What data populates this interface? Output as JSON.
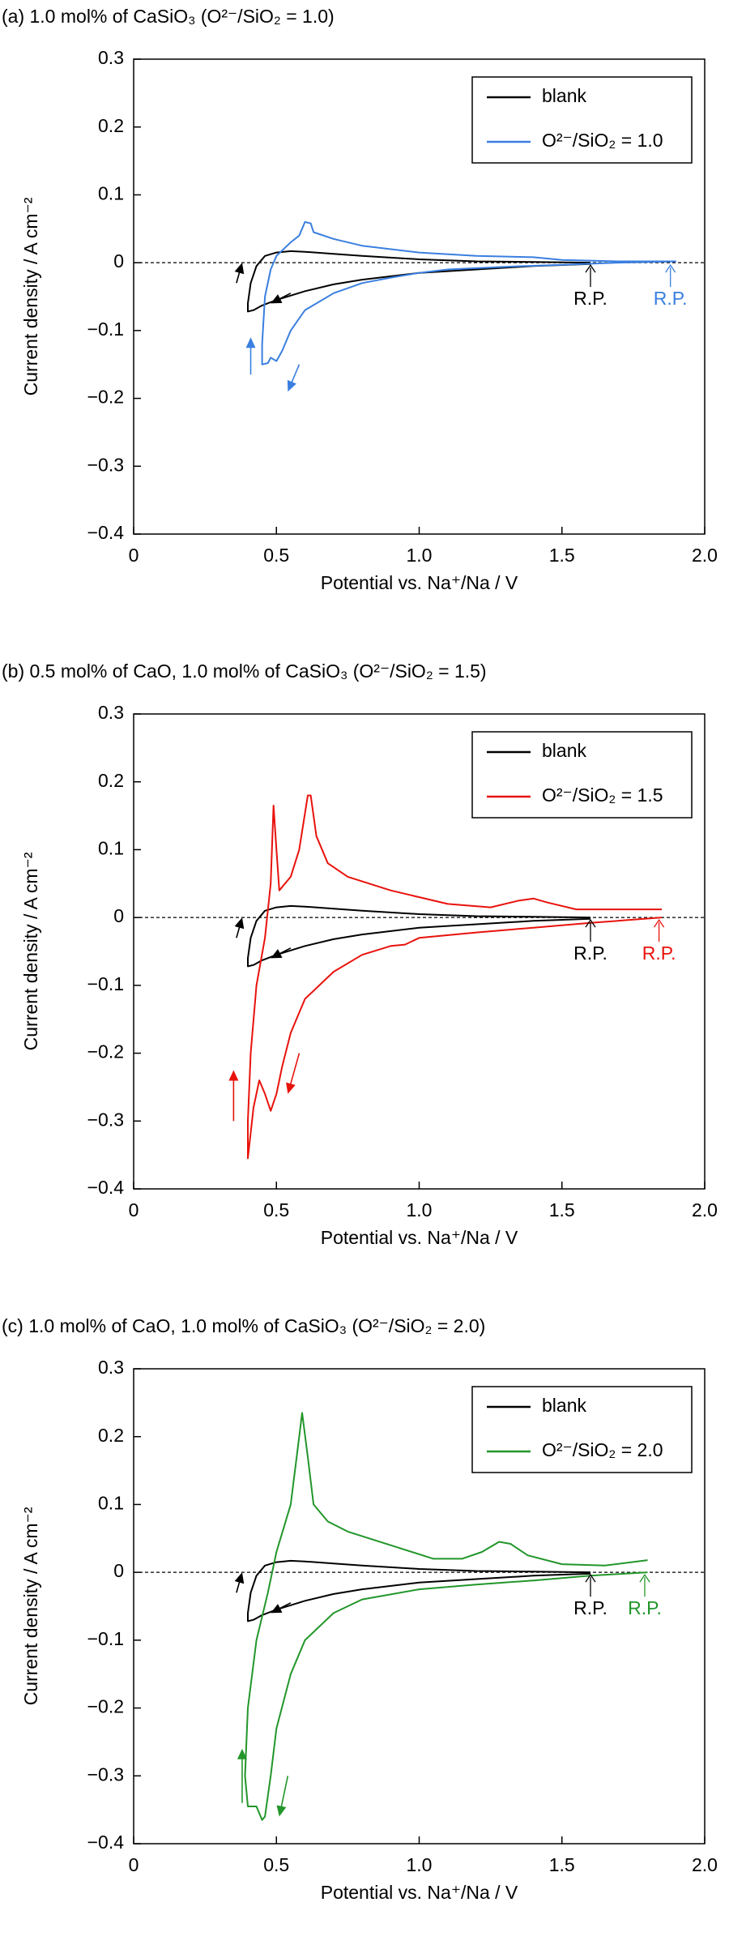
{
  "chart_data": [
    {
      "type": "line",
      "title": "(a) 1.0 mol% of CaSiO₃ (O²⁻/SiO₂ = 1.0)",
      "x_label": "Potential vs. Na⁺/Na / V",
      "y_label": "Current density / A cm⁻²",
      "xlim": [
        0,
        2.0
      ],
      "xticks": [
        0,
        0.5,
        {
          "value": 1.0,
          "label": "1.0"
        },
        1.5,
        {
          "value": 2.0,
          "label": "2.0"
        }
      ],
      "ylim": [
        -0.4,
        0.3
      ],
      "yticks": [
        {
          "value": -0.4,
          "label": "−0.4"
        },
        {
          "value": -0.3,
          "label": "−0.3"
        },
        {
          "value": -0.2,
          "label": "−0.2"
        },
        {
          "value": -0.1,
          "label": "−0.1"
        },
        0,
        0.1,
        0.2,
        0.3
      ],
      "legend": "upper right",
      "annotations": [
        {
          "text": "R.P.",
          "color": "#000000"
        },
        {
          "text": "R.P.",
          "color": "#3a7fe0"
        }
      ],
      "series": [
        {
          "name": "blank",
          "color": "#000000",
          "x": [
            1.6,
            1.4,
            1.2,
            1.0,
            0.8,
            0.7,
            0.6,
            0.5,
            0.45,
            0.42,
            0.4,
            0.4,
            0.41,
            0.43,
            0.46,
            0.5,
            0.55,
            0.6,
            0.7,
            0.8,
            1.0,
            1.2,
            1.4,
            1.6
          ],
          "values": [
            -0.002,
            -0.005,
            -0.01,
            -0.015,
            -0.025,
            -0.032,
            -0.042,
            -0.055,
            -0.063,
            -0.07,
            -0.072,
            -0.06,
            -0.03,
            -0.005,
            0.01,
            0.015,
            0.017,
            0.016,
            0.013,
            0.01,
            0.005,
            0.002,
            0.001,
            0
          ]
        },
        {
          "name": "O²⁻/SiO₂ = 1.0",
          "color": "#3a7fe0",
          "x": [
            1.9,
            1.7,
            1.5,
            1.3,
            1.1,
            1.0,
            0.9,
            0.8,
            0.7,
            0.6,
            0.55,
            0.52,
            0.5,
            0.48,
            0.47,
            0.45,
            0.45,
            0.46,
            0.48,
            0.5,
            0.55,
            0.58,
            0.6,
            0.62,
            0.63,
            0.7,
            0.8,
            1.0,
            1.2,
            1.4,
            1.5,
            1.7,
            1.9
          ],
          "values": [
            0.002,
            0,
            -0.003,
            -0.006,
            -0.01,
            -0.015,
            -0.022,
            -0.03,
            -0.045,
            -0.07,
            -0.1,
            -0.13,
            -0.145,
            -0.14,
            -0.148,
            -0.15,
            -0.12,
            -0.05,
            -0.01,
            0.01,
            0.03,
            0.04,
            0.06,
            0.058,
            0.045,
            0.035,
            0.025,
            0.015,
            0.01,
            0.008,
            0.004,
            0.002,
            0.002
          ]
        }
      ]
    },
    {
      "type": "line",
      "title": "(b) 0.5 mol% of CaO, 1.0 mol% of CaSiO₃ (O²⁻/SiO₂ = 1.5)",
      "x_label": "Potential vs. Na⁺/Na / V",
      "y_label": "Current density / A cm⁻²",
      "xlim": [
        0,
        2.0
      ],
      "xticks": [
        0,
        0.5,
        {
          "value": 1.0,
          "label": "1.0"
        },
        1.5,
        {
          "value": 2.0,
          "label": "2.0"
        }
      ],
      "ylim": [
        -0.4,
        0.3
      ],
      "yticks": [
        {
          "value": -0.4,
          "label": "−0.4"
        },
        {
          "value": -0.3,
          "label": "−0.3"
        },
        {
          "value": -0.2,
          "label": "−0.2"
        },
        {
          "value": -0.1,
          "label": "−0.1"
        },
        0,
        0.1,
        0.2,
        0.3
      ],
      "legend": "upper right",
      "annotations": [
        {
          "text": "R.P.",
          "color": "#000000"
        },
        {
          "text": "R.P.",
          "color": "#e8120c"
        }
      ],
      "series": [
        {
          "name": "blank",
          "color": "#000000",
          "x": [
            1.6,
            1.4,
            1.2,
            1.0,
            0.8,
            0.7,
            0.6,
            0.5,
            0.45,
            0.42,
            0.4,
            0.4,
            0.41,
            0.43,
            0.46,
            0.5,
            0.55,
            0.6,
            0.7,
            0.8,
            1.0,
            1.2,
            1.4,
            1.6
          ],
          "values": [
            -0.002,
            -0.005,
            -0.01,
            -0.015,
            -0.025,
            -0.032,
            -0.042,
            -0.055,
            -0.063,
            -0.07,
            -0.072,
            -0.06,
            -0.03,
            -0.005,
            0.01,
            0.015,
            0.017,
            0.016,
            0.013,
            0.01,
            0.005,
            0.002,
            0.001,
            0
          ]
        },
        {
          "name": "O²⁻/SiO₂ = 1.5",
          "color": "#e8120c",
          "x": [
            1.85,
            1.6,
            1.4,
            1.2,
            1.0,
            0.95,
            0.9,
            0.8,
            0.7,
            0.6,
            0.55,
            0.52,
            0.5,
            0.48,
            0.46,
            0.44,
            0.42,
            0.4,
            0.4,
            0.41,
            0.43,
            0.46,
            0.48,
            0.49,
            0.5,
            0.51,
            0.55,
            0.58,
            0.61,
            0.62,
            0.64,
            0.68,
            0.75,
            0.9,
            1.1,
            1.25,
            1.35,
            1.4,
            1.45,
            1.55,
            1.7,
            1.85
          ],
          "values": [
            0,
            -0.008,
            -0.015,
            -0.022,
            -0.03,
            -0.04,
            -0.042,
            -0.055,
            -0.08,
            -0.12,
            -0.17,
            -0.22,
            -0.26,
            -0.285,
            -0.26,
            -0.24,
            -0.28,
            -0.355,
            -0.3,
            -0.2,
            -0.1,
            -0.03,
            0.05,
            0.165,
            0.1,
            0.04,
            0.06,
            0.1,
            0.18,
            0.18,
            0.12,
            0.08,
            0.06,
            0.04,
            0.02,
            0.015,
            0.025,
            0.028,
            0.022,
            0.012,
            0.012,
            0.012
          ]
        }
      ]
    },
    {
      "type": "line",
      "title": "(c) 1.0 mol% of CaO, 1.0 mol% of CaSiO₃ (O²⁻/SiO₂ = 2.0)",
      "x_label": "Potential vs. Na⁺/Na / V",
      "y_label": "Current density / A cm⁻²",
      "xlim": [
        0,
        2.0
      ],
      "xticks": [
        0,
        0.5,
        {
          "value": 1.0,
          "label": "1.0"
        },
        1.5,
        {
          "value": 2.0,
          "label": "2.0"
        }
      ],
      "ylim": [
        -0.4,
        0.3
      ],
      "yticks": [
        {
          "value": -0.4,
          "label": "−0.4"
        },
        {
          "value": -0.3,
          "label": "−0.3"
        },
        {
          "value": -0.2,
          "label": "−0.2"
        },
        {
          "value": -0.1,
          "label": "−0.1"
        },
        0,
        0.1,
        0.2,
        0.3
      ],
      "legend": "upper right",
      "annotations": [
        {
          "text": "R.P.",
          "color": "#000000"
        },
        {
          "text": "R.P.",
          "color": "#22962a"
        }
      ],
      "series": [
        {
          "name": "blank",
          "color": "#000000",
          "x": [
            1.6,
            1.4,
            1.2,
            1.0,
            0.8,
            0.7,
            0.6,
            0.5,
            0.45,
            0.42,
            0.4,
            0.4,
            0.41,
            0.43,
            0.46,
            0.5,
            0.55,
            0.6,
            0.7,
            0.8,
            1.0,
            1.2,
            1.4,
            1.6
          ],
          "values": [
            -0.002,
            -0.005,
            -0.01,
            -0.015,
            -0.025,
            -0.032,
            -0.042,
            -0.055,
            -0.063,
            -0.07,
            -0.072,
            -0.06,
            -0.03,
            -0.005,
            0.01,
            0.015,
            0.017,
            0.016,
            0.013,
            0.01,
            0.005,
            0.002,
            0.001,
            0
          ]
        },
        {
          "name": "O²⁻/SiO₂ = 2.0",
          "color": "#22962a",
          "x": [
            1.8,
            1.6,
            1.4,
            1.2,
            1.0,
            0.8,
            0.7,
            0.6,
            0.55,
            0.5,
            0.48,
            0.46,
            0.45,
            0.43,
            0.4,
            0.39,
            0.4,
            0.43,
            0.47,
            0.5,
            0.55,
            0.58,
            0.59,
            0.61,
            0.63,
            0.68,
            0.75,
            0.9,
            1.05,
            1.15,
            1.22,
            1.28,
            1.32,
            1.38,
            1.5,
            1.65,
            1.8
          ],
          "values": [
            0,
            -0.005,
            -0.012,
            -0.018,
            -0.025,
            -0.04,
            -0.06,
            -0.1,
            -0.15,
            -0.23,
            -0.3,
            -0.36,
            -0.365,
            -0.345,
            -0.345,
            -0.3,
            -0.2,
            -0.1,
            -0.03,
            0.03,
            0.1,
            0.2,
            0.235,
            0.17,
            0.1,
            0.075,
            0.06,
            0.04,
            0.02,
            0.02,
            0.03,
            0.045,
            0.042,
            0.025,
            0.012,
            0.01,
            0.018
          ]
        }
      ]
    }
  ]
}
